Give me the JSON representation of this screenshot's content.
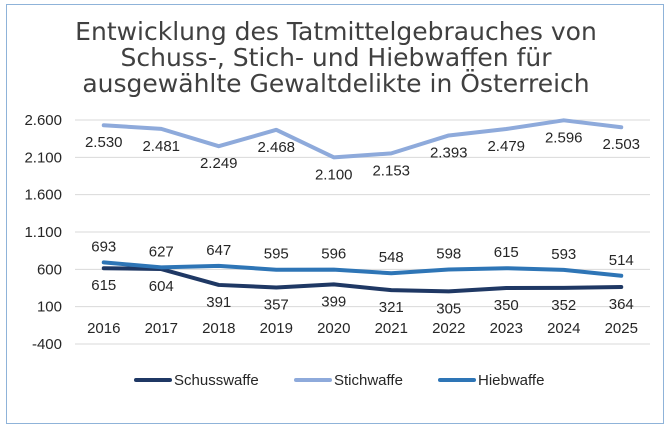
{
  "chart_data": {
    "type": "line",
    "title_lines": [
      "Entwicklung des Tatmittelgebrauches von",
      "Schuss-, Stich- und Hiebwaffen für",
      "ausgewählte Gewaltdelikte in Österreich"
    ],
    "categories": [
      "2016",
      "2017",
      "2018",
      "2019",
      "2020",
      "2021",
      "2022",
      "2023",
      "2024",
      "2025"
    ],
    "ylim": [
      -400,
      2600
    ],
    "y_ticks": [
      -400,
      100,
      600,
      1100,
      1600,
      2100,
      2600
    ],
    "y_tick_labels": [
      "-400",
      "100",
      "600",
      "1.100",
      "1.600",
      "2.100",
      "2.600"
    ],
    "grid": "horizontal",
    "legend_position": "bottom",
    "series": [
      {
        "name": "Schusswaffe",
        "color": "#1f3864",
        "values": [
          615,
          604,
          391,
          357,
          399,
          321,
          305,
          350,
          352,
          364
        ],
        "labels": [
          "615",
          "604",
          "391",
          "357",
          "399",
          "321",
          "305",
          "350",
          "352",
          "364"
        ],
        "label_position": "below"
      },
      {
        "name": "Stichwaffe",
        "color": "#8eaadb",
        "values": [
          2530,
          2481,
          2249,
          2468,
          2100,
          2153,
          2393,
          2479,
          2596,
          2503
        ],
        "labels": [
          "2.530",
          "2.481",
          "2.249",
          "2.468",
          "2.100",
          "2.153",
          "2.393",
          "2.479",
          "2.596",
          "2.503"
        ],
        "label_position": "below"
      },
      {
        "name": "Hiebwaffe",
        "color": "#2e75b6",
        "values": [
          693,
          627,
          647,
          595,
          596,
          548,
          598,
          615,
          593,
          514
        ],
        "labels": [
          "693",
          "627",
          "647",
          "595",
          "596",
          "548",
          "598",
          "615",
          "593",
          "514"
        ],
        "label_position": "above"
      }
    ]
  }
}
